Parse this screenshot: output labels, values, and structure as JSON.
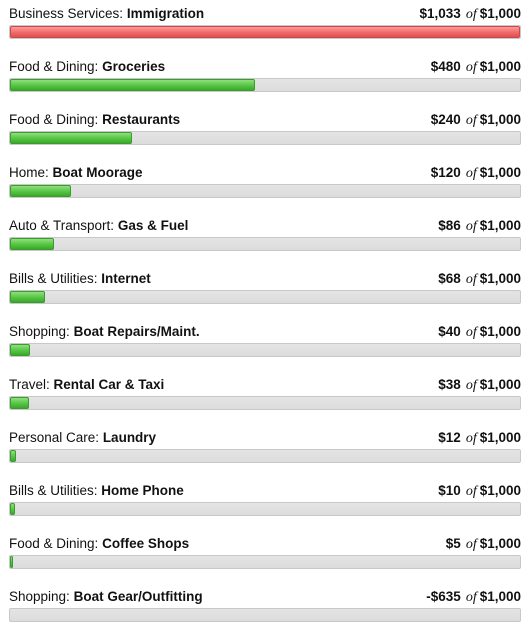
{
  "budgets": [
    {
      "parent": "Business Services:",
      "child": "Immigration",
      "spent": "$1,033",
      "of": "of",
      "limit": "$1,000",
      "progress": 1.0,
      "status": "over"
    },
    {
      "parent": "Food & Dining:",
      "child": "Groceries",
      "spent": "$480",
      "of": "of",
      "limit": "$1,000",
      "progress": 0.48,
      "status": "ok"
    },
    {
      "parent": "Food & Dining:",
      "child": "Restaurants",
      "spent": "$240",
      "of": "of",
      "limit": "$1,000",
      "progress": 0.24,
      "status": "ok"
    },
    {
      "parent": "Home:",
      "child": "Boat Moorage",
      "spent": "$120",
      "of": "of",
      "limit": "$1,000",
      "progress": 0.12,
      "status": "ok"
    },
    {
      "parent": "Auto & Transport:",
      "child": "Gas & Fuel",
      "spent": "$86",
      "of": "of",
      "limit": "$1,000",
      "progress": 0.086,
      "status": "ok"
    },
    {
      "parent": "Bills & Utilities:",
      "child": "Internet",
      "spent": "$68",
      "of": "of",
      "limit": "$1,000",
      "progress": 0.068,
      "status": "ok"
    },
    {
      "parent": "Shopping:",
      "child": "Boat Repairs/Maint.",
      "spent": "$40",
      "of": "of",
      "limit": "$1,000",
      "progress": 0.04,
      "status": "ok"
    },
    {
      "parent": "Travel:",
      "child": "Rental Car & Taxi",
      "spent": "$38",
      "of": "of",
      "limit": "$1,000",
      "progress": 0.038,
      "status": "ok"
    },
    {
      "parent": "Personal Care:",
      "child": "Laundry",
      "spent": "$12",
      "of": "of",
      "limit": "$1,000",
      "progress": 0.012,
      "status": "ok"
    },
    {
      "parent": "Bills & Utilities:",
      "child": "Home Phone",
      "spent": "$10",
      "of": "of",
      "limit": "$1,000",
      "progress": 0.01,
      "status": "ok"
    },
    {
      "parent": "Food & Dining:",
      "child": "Coffee Shops",
      "spent": "$5",
      "of": "of",
      "limit": "$1,000",
      "progress": 0.005,
      "status": "ok"
    },
    {
      "parent": "Shopping:",
      "child": "Boat Gear/Outfitting",
      "spent": "-$635",
      "of": "of",
      "limit": "$1,000",
      "progress": 0.0,
      "status": "ok"
    }
  ],
  "colors": {
    "ok_fill": "#56c443",
    "over_fill": "#f06a6a",
    "track": "#dcdcdc"
  }
}
